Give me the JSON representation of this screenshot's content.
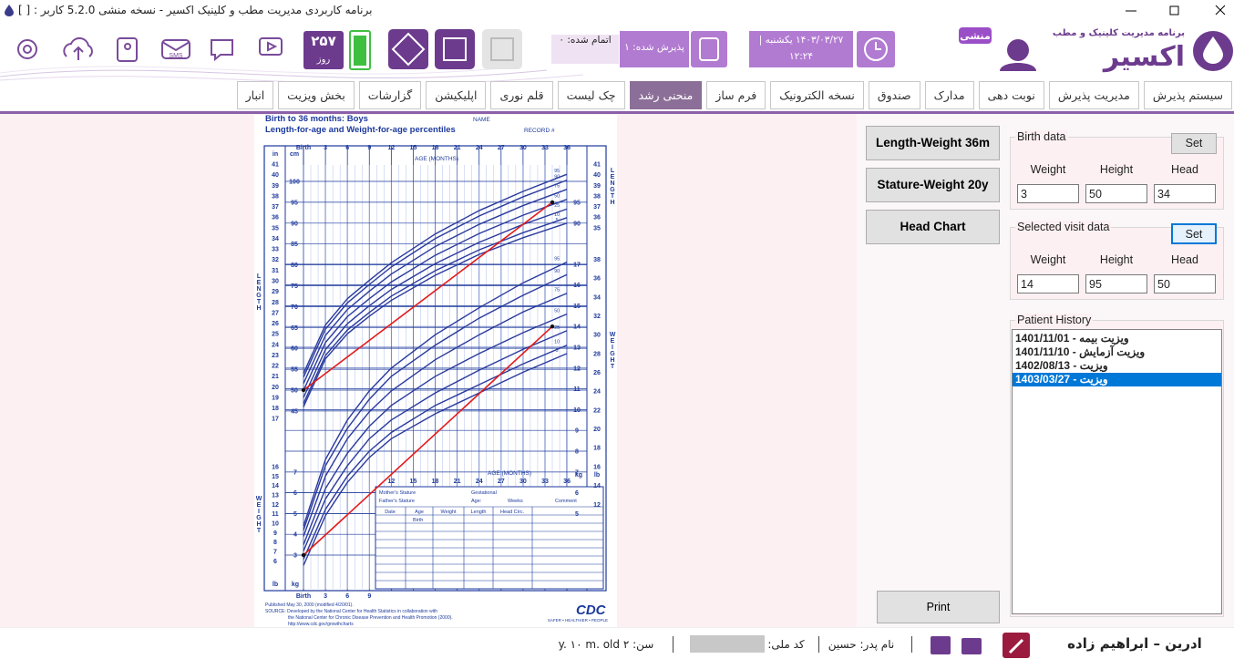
{
  "window": {
    "title": "برنامه کاربردی مدیریت مطب و کلینیک اکسیر - نسخه منشی 5.2.0 کاربر : [ ]"
  },
  "header": {
    "brand": "اکسیر",
    "tagline": "برنامه مدیریت کلینیک و مطب",
    "role": "منشی",
    "date": "۱۴۰۳/۰۳/۲۷  یکشنبه |",
    "time": "۱۲:۲۴",
    "admitted": "پذیرش شده: ۱",
    "finished": "اتمام شده: ۰",
    "days": "۲۵۷",
    "days_unit": "روز",
    "sms": "SMS"
  },
  "tabs": [
    "سیستم پذیرش",
    "مدیریت پذیرش",
    "نوبت دهی",
    "مدارک",
    "صندوق",
    "نسخه الکترونیک",
    "فرم ساز",
    "منحنی رشد",
    "چک لیست",
    "قلم نوری",
    "اپلیکیشن",
    "گزارشات",
    "بخش ویزیت",
    "انبار"
  ],
  "active_tab": 7,
  "growth_chart": {
    "title": "Birth to 36 months: Boys",
    "subtitle": "Length-for-age and Weight-for-age percentiles",
    "name_label": "NAME",
    "record_label": "RECORD #",
    "age_label": "AGE (MONTHS)",
    "age_ticks": [
      {
        "value": 0,
        "label": "Birth"
      },
      3,
      6,
      9,
      12,
      15,
      18,
      21,
      24,
      27,
      30,
      33,
      36
    ],
    "length_axis_label": "LENGTH",
    "weight_axis_label": "WEIGHT",
    "cm_unit": "cm",
    "in_unit": "in",
    "kg_unit": "kg",
    "lb_unit": "lb",
    "length_ticks": [
      45,
      50,
      55,
      60,
      65,
      70,
      75,
      80,
      85,
      90,
      95,
      100
    ],
    "right_length_ticks": [
      90,
      95
    ],
    "in_ticks": [
      17,
      18,
      19,
      20,
      21,
      22,
      23,
      24,
      25,
      26,
      27,
      28,
      29,
      30,
      31,
      32,
      33,
      34,
      35,
      36,
      37,
      38,
      39,
      40,
      41
    ],
    "right_in_ticks": [
      35,
      36,
      37,
      38,
      39,
      40,
      41
    ],
    "weight_ticks": [
      3,
      4,
      5,
      6,
      7
    ],
    "right_weight_ticks": [
      5,
      6,
      7,
      8,
      9,
      10,
      11,
      12,
      13,
      14,
      15,
      16,
      17
    ],
    "lb_ticks": [
      6,
      7,
      8,
      9,
      10,
      11,
      12,
      13,
      14,
      15,
      16
    ],
    "right_lb_ticks": [
      12,
      14,
      16,
      18,
      20,
      22,
      24,
      26,
      28,
      30,
      32,
      34,
      36,
      38
    ],
    "ages": [
      0,
      3,
      6,
      9,
      12,
      18,
      24,
      30,
      36
    ],
    "length_curves": [
      {
        "name": "95",
        "values": [
          54.0,
          65.6,
          71.9,
          76.3,
          80.5,
          87.4,
          93.0,
          97.6,
          101.7
        ]
      },
      {
        "name": "90",
        "values": [
          53.1,
          64.6,
          70.9,
          75.3,
          79.5,
          86.3,
          91.7,
          96.3,
          100.3
        ]
      },
      {
        "name": "75",
        "values": [
          51.6,
          63.1,
          69.3,
          73.7,
          77.8,
          84.4,
          89.7,
          94.2,
          98.1
        ]
      },
      {
        "name": "50",
        "values": [
          49.9,
          61.4,
          67.6,
          71.9,
          75.9,
          82.3,
          87.5,
          91.9,
          95.7
        ]
      },
      {
        "name": "25",
        "values": [
          48.2,
          59.7,
          65.9,
          70.2,
          74.1,
          80.3,
          85.4,
          89.7,
          93.4
        ]
      },
      {
        "name": "10",
        "values": [
          46.8,
          58.3,
          64.4,
          68.6,
          72.5,
          78.6,
          83.6,
          87.7,
          91.3
        ]
      },
      {
        "name": "5",
        "values": [
          46.0,
          57.5,
          63.5,
          67.7,
          71.5,
          77.5,
          82.5,
          86.5,
          90.0
        ]
      }
    ],
    "weight_curves": [
      {
        "name": "95",
        "values": [
          4.4,
          7.6,
          9.5,
          10.9,
          12.0,
          13.6,
          14.9,
          16.1,
          17.1
        ]
      },
      {
        "name": "90",
        "values": [
          4.2,
          7.3,
          9.1,
          10.5,
          11.6,
          13.1,
          14.4,
          15.5,
          16.5
        ]
      },
      {
        "name": "75",
        "values": [
          3.9,
          6.8,
          8.6,
          9.9,
          10.9,
          12.4,
          13.6,
          14.7,
          15.6
        ]
      },
      {
        "name": "50",
        "values": [
          3.5,
          6.2,
          7.9,
          9.2,
          10.2,
          11.6,
          12.7,
          13.7,
          14.6
        ]
      },
      {
        "name": "25",
        "values": [
          3.2,
          5.7,
          7.3,
          8.6,
          9.5,
          10.8,
          11.9,
          12.9,
          13.8
        ]
      },
      {
        "name": "10",
        "values": [
          2.8,
          5.2,
          6.8,
          8.0,
          8.9,
          10.2,
          11.2,
          12.2,
          13.1
        ]
      },
      {
        "name": "5",
        "values": [
          2.5,
          4.9,
          6.5,
          7.7,
          8.6,
          9.8,
          10.8,
          11.8,
          12.7
        ]
      }
    ],
    "record": {
      "mother": "Mother's Stature",
      "gestational": "Gestational",
      "father": "Father's Stature",
      "age": "Age:",
      "weeks": "Weeks",
      "comment": "Comment",
      "columns": [
        "Date",
        "Age",
        "Weight",
        "Length",
        "Head Circ."
      ],
      "birth": "Birth"
    },
    "footer": [
      "Published May 30, 2000 (modified 4/20/01).",
      "SOURCE: Developed by the National Center for Health Statistics in collaboration with",
      "the National Center for Chronic Disease Prevention and Health Promotion (2000).",
      "http://www.cdc.gov/growthcharts"
    ],
    "cdc": "CDC",
    "slogan": "SAFER • HEALTHIER • PEOPLE"
  },
  "chart_buttons": [
    "Length-Weight 36m",
    "Stature-Weight 20y",
    "Head Chart"
  ],
  "print": "Print",
  "birth_data": {
    "title": "Birth data",
    "set": "Set",
    "labels": [
      "Weight",
      "Height",
      "Head"
    ],
    "values": [
      3,
      50,
      34
    ]
  },
  "visit_data": {
    "title": "Selected visit data",
    "set": "Set",
    "labels": [
      "Weight",
      "Height",
      "Head"
    ],
    "values": [
      14,
      95,
      50
    ]
  },
  "history": {
    "title": "Patient History",
    "items": [
      "1401/11/01 - ویزیت بیمه",
      "1401/11/10 - ویزیت آزمایش",
      "1402/08/13 - ویزیت",
      "1403/03/27 - ویزیت"
    ],
    "selected": 3
  },
  "status": {
    "patient": "ادرین – ابراهیم زاده",
    "father": "نام پدر: حسین",
    "national_id": "کد ملی:",
    "age": "سن: ۲ y. ۱۰ m. old"
  }
}
